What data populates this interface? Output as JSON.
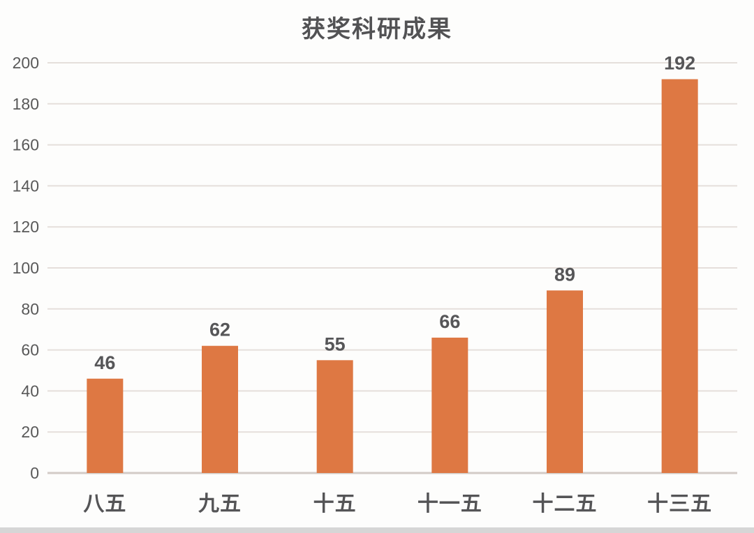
{
  "page": {
    "background": "#FDFDFC"
  },
  "chart_data": {
    "type": "bar",
    "title": "获奖科研成果",
    "categories": [
      "八五",
      "九五",
      "十五",
      "十一五",
      "十二五",
      "十三五"
    ],
    "values": [
      46,
      62,
      55,
      66,
      89,
      192
    ],
    "xlabel": "",
    "ylabel": "",
    "ylim": [
      0,
      200
    ],
    "yticks": [
      0,
      20,
      40,
      60,
      80,
      100,
      120,
      140,
      160,
      180,
      200
    ],
    "grid": true,
    "legend_position": "none",
    "colors": {
      "bar": "#DE7843",
      "tick_text": "#595959",
      "value_text": "#565658",
      "category_text": "#545456",
      "gridline": "#E5DFDB",
      "axis_line": "#D2CBC6",
      "divider": "#D6D6D6"
    }
  }
}
